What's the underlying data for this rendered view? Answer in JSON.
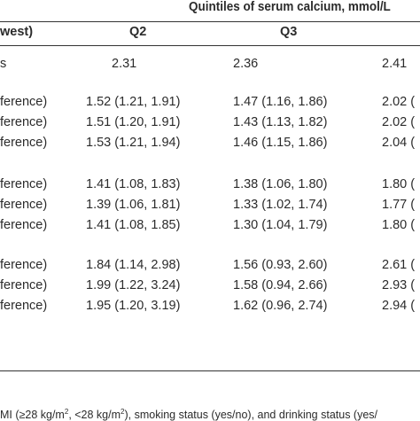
{
  "title": "Quintiles of serum calcium, mmol/L",
  "headers": {
    "first": "west)",
    "q2": "Q2",
    "q3": "Q3"
  },
  "median_row": {
    "label": "s",
    "q2": "2.31",
    "q3": "2.36",
    "q4": "2.41"
  },
  "groups": [
    {
      "rows": [
        {
          "label": "ference)",
          "q2": "1.52 (1.21, 1.91)",
          "q3": "1.47 (1.16, 1.86)",
          "q4": "2.02 ("
        },
        {
          "label": "ference)",
          "q2": "1.51 (1.20, 1.91)",
          "q3": "1.43 (1.13, 1.82)",
          "q4": "2.02 ("
        },
        {
          "label": "ference)",
          "q2": "1.53 (1.21, 1.94)",
          "q3": "1.46 (1.15, 1.86)",
          "q4": "2.04 ("
        }
      ]
    },
    {
      "rows": [
        {
          "label": "ference)",
          "q2": "1.41 (1.08, 1.83)",
          "q3": "1.38 (1.06, 1.80)",
          "q4": "1.80 ("
        },
        {
          "label": "ference)",
          "q2": "1.39 (1.06, 1.81)",
          "q3": "1.33 (1.02, 1.74)",
          "q4": "1.77 ("
        },
        {
          "label": "ference)",
          "q2": "1.41 (1.08, 1.85)",
          "q3": "1.30 (1.04, 1.79)",
          "q4": "1.80 ("
        }
      ]
    },
    {
      "rows": [
        {
          "label": "ference)",
          "q2": "1.84 (1.14, 2.98)",
          "q3": "1.56 (0.93, 2.60)",
          "q4": "2.61 ("
        },
        {
          "label": "ference)",
          "q2": "1.99 (1.22, 3.24)",
          "q3": "1.58 (0.94, 2.66)",
          "q4": "2.93 ("
        },
        {
          "label": "ference)",
          "q2": "1.95 (1.20, 3.19)",
          "q3": "1.62 (0.96, 2.74)",
          "q4": "2.94 ("
        }
      ]
    }
  ],
  "footnote": {
    "p1": "MI (≥28 kg/m",
    "sup1": "2",
    "p2": ", <28 kg/m",
    "sup2": "2",
    "p3": "), smoking status (yes/no), and drinking status (yes/"
  }
}
